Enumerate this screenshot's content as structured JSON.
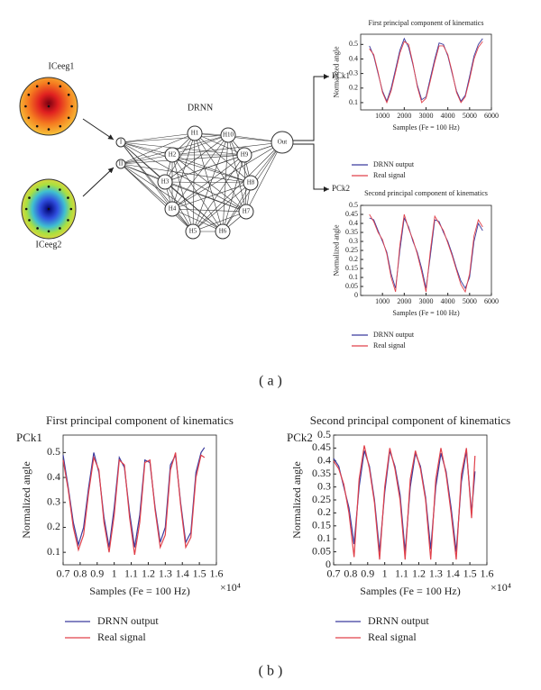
{
  "diagram": {
    "inputs": [
      {
        "map": "ICeeg1",
        "node": "I"
      },
      {
        "map": "ICeeg2",
        "node": "II"
      }
    ],
    "title": "DRNN",
    "hidden": [
      "H1",
      "H2",
      "H3",
      "H4",
      "H5",
      "H6",
      "H7",
      "H8",
      "H9",
      "H10"
    ],
    "output": "Out",
    "outputs": [
      "PCk1",
      "PCk2"
    ]
  },
  "panel_labels": [
    "( a )",
    "( b )"
  ],
  "chart_data": [
    {
      "type": "line",
      "title": "First principal component of kinematics",
      "y_label": "Normalized angle",
      "x_label": "Samples (Fe = 100 Hz)",
      "x": [
        400,
        600,
        800,
        1000,
        1200,
        1400,
        1600,
        1800,
        2000,
        2200,
        2400,
        2600,
        2800,
        3000,
        3200,
        3400,
        3600,
        3800,
        4000,
        4200,
        4400,
        4600,
        4800,
        5000,
        5200,
        5400,
        5600
      ],
      "series": [
        {
          "name": "DRNN output",
          "color": "#3b3b9e",
          "values": [
            0.49,
            0.42,
            0.3,
            0.18,
            0.11,
            0.2,
            0.33,
            0.46,
            0.54,
            0.48,
            0.36,
            0.22,
            0.12,
            0.14,
            0.27,
            0.4,
            0.51,
            0.5,
            0.42,
            0.3,
            0.18,
            0.11,
            0.15,
            0.28,
            0.42,
            0.5,
            0.54
          ]
        },
        {
          "name": "Real signal",
          "color": "#e0404a",
          "values": [
            0.47,
            0.43,
            0.31,
            0.17,
            0.1,
            0.18,
            0.31,
            0.44,
            0.52,
            0.5,
            0.37,
            0.21,
            0.1,
            0.13,
            0.25,
            0.38,
            0.49,
            0.49,
            0.43,
            0.31,
            0.17,
            0.1,
            0.14,
            0.26,
            0.4,
            0.48,
            0.52
          ]
        }
      ],
      "xlim": [
        0,
        6000
      ],
      "xticks": [
        1000,
        2000,
        3000,
        4000,
        5000,
        6000
      ],
      "ylim": [
        0.05,
        0.57
      ],
      "yticks": [
        0.1,
        0.2,
        0.3,
        0.4,
        0.5
      ]
    },
    {
      "type": "line",
      "title": "Second principal component of kinematics",
      "y_label": "Normalized angle",
      "x_label": "Samples (Fe = 100 Hz)",
      "x": [
        400,
        600,
        800,
        1000,
        1200,
        1400,
        1600,
        1800,
        2000,
        2200,
        2400,
        2600,
        2800,
        3000,
        3200,
        3400,
        3600,
        3800,
        4000,
        4200,
        4400,
        4600,
        4800,
        5000,
        5200,
        5400,
        5600
      ],
      "series": [
        {
          "name": "DRNN output",
          "color": "#3b3b9e",
          "values": [
            0.43,
            0.42,
            0.36,
            0.3,
            0.24,
            0.12,
            0.04,
            0.25,
            0.43,
            0.38,
            0.3,
            0.24,
            0.15,
            0.04,
            0.22,
            0.42,
            0.41,
            0.35,
            0.3,
            0.23,
            0.15,
            0.08,
            0.04,
            0.1,
            0.3,
            0.4,
            0.36
          ]
        },
        {
          "name": "Real signal",
          "color": "#e0404a",
          "values": [
            0.45,
            0.41,
            0.35,
            0.31,
            0.23,
            0.1,
            0.02,
            0.28,
            0.45,
            0.37,
            0.31,
            0.23,
            0.13,
            0.02,
            0.25,
            0.44,
            0.4,
            0.36,
            0.29,
            0.22,
            0.14,
            0.06,
            0.02,
            0.12,
            0.33,
            0.42,
            0.38
          ]
        }
      ],
      "xlim": [
        0,
        6000
      ],
      "xticks": [
        1000,
        2000,
        3000,
        4000,
        5000,
        6000
      ],
      "ylim": [
        0,
        0.5
      ],
      "yticks": [
        0,
        0.05,
        0.1,
        0.15,
        0.2,
        0.25,
        0.3,
        0.35,
        0.4,
        0.45,
        0.5
      ]
    },
    {
      "type": "line",
      "title": "First principal component of kinematics",
      "corner_label": "PCk1",
      "y_label": "Normalized angle",
      "x_label": "Samples (Fe = 100 Hz)",
      "x_multiplier": "×10⁴",
      "x": [
        7000,
        7300,
        7600,
        7900,
        8200,
        8500,
        8800,
        9100,
        9400,
        9700,
        10000,
        10300,
        10600,
        10900,
        11200,
        11500,
        11800,
        12100,
        12400,
        12700,
        13000,
        13300,
        13600,
        13900,
        14200,
        14500,
        14800,
        15100,
        15300
      ],
      "series": [
        {
          "name": "DRNN output",
          "color": "#3b3b9e",
          "values": [
            0.49,
            0.36,
            0.22,
            0.13,
            0.2,
            0.36,
            0.5,
            0.42,
            0.24,
            0.12,
            0.28,
            0.48,
            0.44,
            0.26,
            0.12,
            0.25,
            0.47,
            0.46,
            0.28,
            0.14,
            0.2,
            0.45,
            0.49,
            0.3,
            0.14,
            0.18,
            0.42,
            0.5,
            0.52
          ]
        },
        {
          "name": "Real signal",
          "color": "#e0404a",
          "values": [
            0.47,
            0.35,
            0.2,
            0.11,
            0.17,
            0.34,
            0.48,
            0.43,
            0.22,
            0.1,
            0.25,
            0.47,
            0.45,
            0.24,
            0.09,
            0.22,
            0.46,
            0.47,
            0.27,
            0.12,
            0.17,
            0.43,
            0.5,
            0.29,
            0.12,
            0.16,
            0.4,
            0.49,
            0.48
          ]
        }
      ],
      "xlim": [
        7000,
        16000
      ],
      "xticks": [
        {
          "value": 7000,
          "label": "0.7"
        },
        {
          "value": 8000,
          "label": "0.8"
        },
        {
          "value": 9000,
          "label": "0.9"
        },
        {
          "value": 10000,
          "label": "1"
        },
        {
          "value": 11000,
          "label": "1.1"
        },
        {
          "value": 12000,
          "label": "1.2"
        },
        {
          "value": 13000,
          "label": "1.3"
        },
        {
          "value": 14000,
          "label": "1.4"
        },
        {
          "value": 15000,
          "label": "1.5"
        },
        {
          "value": 16000,
          "label": "1.6"
        }
      ],
      "ylim": [
        0.05,
        0.57
      ],
      "yticks": [
        0.1,
        0.2,
        0.3,
        0.4,
        0.5
      ]
    },
    {
      "type": "line",
      "title": "Second principal component of kinematics",
      "corner_label": "PCk2",
      "y_label": "Normalized angle",
      "x_label": "Samples (Fe = 100 Hz)",
      "x_multiplier": "×10⁴",
      "x": [
        7000,
        7300,
        7600,
        7900,
        8200,
        8500,
        8800,
        9100,
        9400,
        9700,
        10000,
        10300,
        10600,
        10900,
        11200,
        11500,
        11800,
        12100,
        12400,
        12700,
        13000,
        13300,
        13600,
        13900,
        14200,
        14500,
        14800,
        15100,
        15300
      ],
      "series": [
        {
          "name": "DRNN output",
          "color": "#3b3b9e",
          "values": [
            0.41,
            0.38,
            0.3,
            0.22,
            0.08,
            0.3,
            0.44,
            0.38,
            0.25,
            0.05,
            0.28,
            0.44,
            0.38,
            0.27,
            0.05,
            0.3,
            0.43,
            0.38,
            0.26,
            0.06,
            0.3,
            0.43,
            0.36,
            0.22,
            0.05,
            0.32,
            0.44,
            0.2,
            0.36
          ]
        },
        {
          "name": "Real signal",
          "color": "#e0404a",
          "values": [
            0.4,
            0.37,
            0.31,
            0.2,
            0.03,
            0.33,
            0.46,
            0.37,
            0.24,
            0.02,
            0.3,
            0.45,
            0.37,
            0.25,
            0.02,
            0.33,
            0.44,
            0.37,
            0.25,
            0.02,
            0.33,
            0.45,
            0.35,
            0.2,
            0.02,
            0.35,
            0.45,
            0.18,
            0.42
          ]
        }
      ],
      "xlim": [
        7000,
        16000
      ],
      "xticks": [
        {
          "value": 7000,
          "label": "0.7"
        },
        {
          "value": 8000,
          "label": "0.8"
        },
        {
          "value": 9000,
          "label": "0.9"
        },
        {
          "value": 10000,
          "label": "1"
        },
        {
          "value": 11000,
          "label": "1.1"
        },
        {
          "value": 12000,
          "label": "1.2"
        },
        {
          "value": 13000,
          "label": "1.3"
        },
        {
          "value": 14000,
          "label": "1.4"
        },
        {
          "value": 15000,
          "label": "1.5"
        },
        {
          "value": 16000,
          "label": "1.6"
        }
      ],
      "ylim": [
        0,
        0.5
      ],
      "yticks": [
        0,
        0.05,
        0.1,
        0.15,
        0.2,
        0.25,
        0.3,
        0.35,
        0.4,
        0.45,
        0.5
      ]
    }
  ]
}
